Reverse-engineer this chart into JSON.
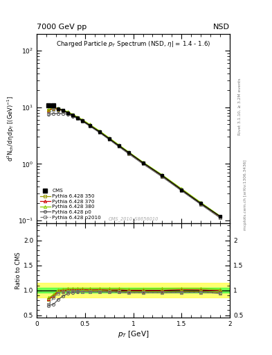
{
  "title_top": "7000 GeV pp",
  "title_top_right": "NSD",
  "watermark": "CMS_2010_S8656010",
  "xlim": [
    0.0,
    2.0
  ],
  "ylim_main": [
    0.09,
    200
  ],
  "ylim_ratio": [
    0.45,
    2.35
  ],
  "pt_values": [
    0.125,
    0.175,
    0.225,
    0.275,
    0.325,
    0.375,
    0.425,
    0.475,
    0.55,
    0.65,
    0.75,
    0.85,
    0.95,
    1.1,
    1.3,
    1.5,
    1.7,
    1.9
  ],
  "cms_y": [
    10.8,
    10.8,
    9.5,
    8.8,
    8.0,
    7.2,
    6.5,
    5.8,
    4.8,
    3.7,
    2.8,
    2.1,
    1.6,
    1.05,
    0.62,
    0.35,
    0.2,
    0.118
  ],
  "p350_y": [
    8.8,
    9.5,
    9.2,
    8.6,
    7.9,
    7.15,
    6.45,
    5.75,
    4.75,
    3.65,
    2.75,
    2.05,
    1.55,
    1.02,
    0.6,
    0.34,
    0.195,
    0.113
  ],
  "p370_y": [
    8.9,
    9.7,
    9.4,
    8.8,
    8.1,
    7.3,
    6.6,
    5.9,
    4.85,
    3.75,
    2.82,
    2.12,
    1.6,
    1.05,
    0.62,
    0.355,
    0.202,
    0.117
  ],
  "p380_y": [
    9.2,
    9.9,
    9.6,
    9.0,
    8.3,
    7.5,
    6.75,
    6.05,
    4.98,
    3.85,
    2.9,
    2.18,
    1.64,
    1.08,
    0.64,
    0.365,
    0.208,
    0.12
  ],
  "p0_y": [
    7.5,
    7.8,
    7.8,
    7.8,
    7.5,
    6.9,
    6.3,
    5.65,
    4.65,
    3.58,
    2.7,
    2.02,
    1.52,
    1.0,
    0.59,
    0.335,
    0.192,
    0.111
  ],
  "p2010_y": [
    7.8,
    9.2,
    9.0,
    8.5,
    7.8,
    7.05,
    6.35,
    5.65,
    4.65,
    3.58,
    2.7,
    2.02,
    1.52,
    1.0,
    0.59,
    0.335,
    0.192,
    0.111
  ],
  "ratio_p350": [
    0.815,
    0.88,
    0.968,
    0.977,
    0.988,
    0.993,
    0.992,
    0.991,
    0.99,
    0.986,
    0.982,
    0.976,
    0.969,
    0.971,
    0.968,
    0.971,
    0.975,
    0.958
  ],
  "ratio_p370": [
    0.824,
    0.899,
    0.989,
    0.999,
    1.013,
    1.014,
    1.015,
    1.017,
    1.01,
    1.014,
    1.007,
    1.01,
    1.0,
    1.0,
    1.0,
    1.014,
    1.01,
    0.991
  ],
  "ratio_p380": [
    0.852,
    0.917,
    1.011,
    1.023,
    1.038,
    1.042,
    1.038,
    1.043,
    1.038,
    1.041,
    1.036,
    1.038,
    1.025,
    1.029,
    1.032,
    1.043,
    1.04,
    1.017
  ],
  "ratio_p0": [
    0.694,
    0.722,
    0.821,
    0.886,
    0.938,
    0.958,
    0.969,
    0.974,
    0.969,
    0.968,
    0.964,
    0.962,
    0.95,
    0.952,
    0.952,
    0.957,
    0.96,
    0.941
  ],
  "ratio_p2010": [
    0.722,
    0.852,
    0.947,
    0.966,
    0.975,
    0.979,
    0.977,
    0.974,
    0.969,
    0.968,
    0.964,
    0.962,
    0.95,
    0.952,
    0.952,
    0.957,
    0.96,
    0.941
  ],
  "band_yellow_lo": 0.85,
  "band_yellow_hi": 1.15,
  "band_green_lo": 0.95,
  "band_green_hi": 1.05,
  "color_cms": "#000000",
  "color_p350": "#999900",
  "color_p370": "#cc0000",
  "color_p380": "#88cc00",
  "color_p0": "#555555",
  "color_p2010": "#777777",
  "bg_color": "#ffffff"
}
